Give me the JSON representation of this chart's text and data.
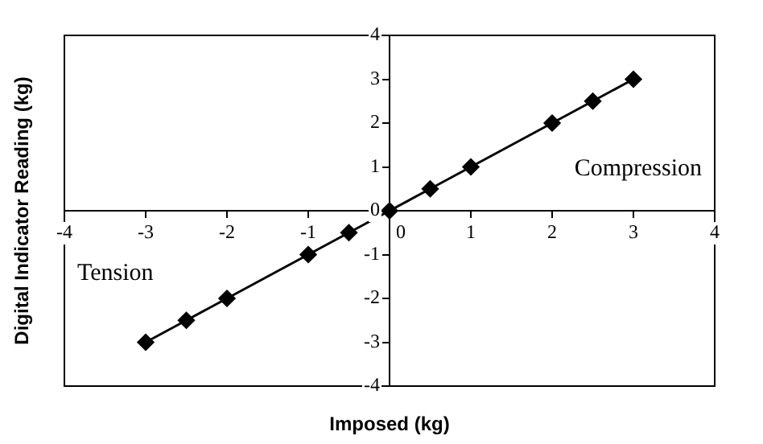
{
  "chart_data": {
    "type": "line",
    "xlabel": "Imposed (kg)",
    "ylabel": "Digital Indicator Reading (kg)",
    "x": [
      -3,
      -2.5,
      -2,
      -1,
      -0.5,
      0,
      0.5,
      1,
      2,
      2.5,
      3
    ],
    "series": [
      {
        "color": "#000000",
        "values": [
          -3,
          -2.5,
          -2,
          -1,
          -0.5,
          0,
          0.5,
          1,
          2,
          2.5,
          3
        ]
      }
    ],
    "xlim": [
      -4,
      4
    ],
    "xticks": [
      -4,
      -3,
      -2,
      -1,
      0,
      1,
      2,
      3,
      4
    ],
    "ylim": [
      -4,
      4
    ],
    "yticks": [
      -4,
      -3,
      -2,
      -1,
      0,
      1,
      2,
      3,
      4
    ],
    "annotations": [
      "Compression",
      "Tension"
    ],
    "marker": "diamond",
    "line_style": "solid",
    "grid": false,
    "legend": false
  }
}
